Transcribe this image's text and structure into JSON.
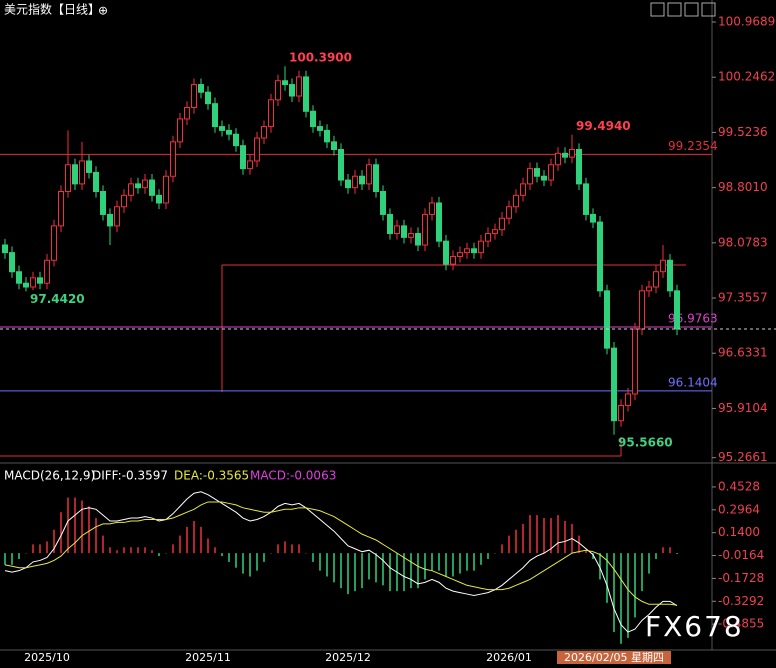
{
  "header": {
    "title": "美元指数【日线】",
    "icon": "⊕"
  },
  "watermark": "FX678",
  "chart_data": [
    {
      "type": "candlestick",
      "categories": [
        null,
        null,
        null,
        null,
        null,
        null,
        "2025/10",
        null,
        null,
        null,
        null,
        null,
        null,
        null,
        null,
        null,
        null,
        null,
        null,
        null,
        null,
        null,
        null,
        null,
        null,
        null,
        null,
        null,
        null,
        "2025/11",
        null,
        null,
        null,
        null,
        null,
        null,
        null,
        null,
        null,
        null,
        null,
        null,
        null,
        null,
        null,
        null,
        null,
        null,
        null,
        "2025/12",
        null,
        null,
        null,
        null,
        null,
        null,
        null,
        null,
        null,
        null,
        null,
        null,
        null,
        null,
        null,
        null,
        null,
        null,
        null,
        null,
        null,
        null,
        "2026/01",
        null,
        null,
        null,
        null,
        null,
        null,
        null,
        null,
        null,
        null,
        null,
        null,
        null,
        null,
        "2026/02/05 星期四",
        null,
        null,
        null,
        null,
        null,
        null,
        null,
        null,
        null
      ],
      "open": [
        98.05,
        97.95,
        97.7,
        97.55,
        97.5,
        97.62,
        97.55,
        97.85,
        98.3,
        98.75,
        99.1,
        98.85,
        99.15,
        99.0,
        98.75,
        98.45,
        98.3,
        98.55,
        98.7,
        98.85,
        98.8,
        98.9,
        98.7,
        98.6,
        98.95,
        99.4,
        99.7,
        99.85,
        100.15,
        100.05,
        99.9,
        99.6,
        99.55,
        99.5,
        99.35,
        99.05,
        99.15,
        99.45,
        99.6,
        99.95,
        100.2,
        100.15,
        100.0,
        100.25,
        99.8,
        99.6,
        99.55,
        99.4,
        99.3,
        98.9,
        98.8,
        98.95,
        98.85,
        99.1,
        98.75,
        98.45,
        98.2,
        98.3,
        98.15,
        98.2,
        98.05,
        98.45,
        98.6,
        98.1,
        97.8,
        97.9,
        97.95,
        98.0,
        97.95,
        98.1,
        98.2,
        98.25,
        98.4,
        98.55,
        98.7,
        98.85,
        99.05,
        98.95,
        98.9,
        99.1,
        99.25,
        99.2,
        99.3,
        98.85,
        98.45,
        98.35,
        97.45,
        96.7,
        95.75,
        95.95,
        96.1,
        96.95,
        97.45,
        97.5,
        97.7,
        97.85,
        97.45
      ],
      "high": [
        98.13,
        98.03,
        97.78,
        97.63,
        97.7,
        97.7,
        97.93,
        98.38,
        98.83,
        99.55,
        99.18,
        99.4,
        99.23,
        99.08,
        98.83,
        98.53,
        98.63,
        98.78,
        98.93,
        98.93,
        98.98,
        98.98,
        98.78,
        99.03,
        99.48,
        99.78,
        99.93,
        100.23,
        100.23,
        100.13,
        99.98,
        99.68,
        99.63,
        99.58,
        99.43,
        99.23,
        99.53,
        99.68,
        100.03,
        100.28,
        100.39,
        100.23,
        100.33,
        100.33,
        99.88,
        99.68,
        99.63,
        99.48,
        99.38,
        98.98,
        99.03,
        99.03,
        99.18,
        99.18,
        98.83,
        98.53,
        98.38,
        98.38,
        98.28,
        98.28,
        98.53,
        98.68,
        98.68,
        98.18,
        97.98,
        98.03,
        98.08,
        98.08,
        98.18,
        98.28,
        98.33,
        98.48,
        98.63,
        98.78,
        98.93,
        99.13,
        99.13,
        99.03,
        99.18,
        99.33,
        99.33,
        99.494,
        99.38,
        98.93,
        98.53,
        98.43,
        97.53,
        96.78,
        96.03,
        96.18,
        97.03,
        97.53,
        97.58,
        97.78,
        98.05,
        97.93,
        97.53
      ],
      "low": [
        97.87,
        97.62,
        97.47,
        97.442,
        97.46,
        97.47,
        97.47,
        97.77,
        98.22,
        98.67,
        98.77,
        98.77,
        98.92,
        98.67,
        98.37,
        98.05,
        98.22,
        98.47,
        98.62,
        98.72,
        98.72,
        98.62,
        98.52,
        98.52,
        98.87,
        99.32,
        99.62,
        99.77,
        99.97,
        99.82,
        99.52,
        99.47,
        99.42,
        99.27,
        98.97,
        98.97,
        99.07,
        99.37,
        99.52,
        99.87,
        100.07,
        99.92,
        99.92,
        99.72,
        99.52,
        99.47,
        99.32,
        99.22,
        98.82,
        98.72,
        98.72,
        98.77,
        98.77,
        98.67,
        98.37,
        98.12,
        98.12,
        98.07,
        98.07,
        97.97,
        97.97,
        98.37,
        98.02,
        97.72,
        97.72,
        97.82,
        97.87,
        97.87,
        97.87,
        98.02,
        98.12,
        98.17,
        98.32,
        98.47,
        98.62,
        98.77,
        98.87,
        98.82,
        98.82,
        99.02,
        99.12,
        99.12,
        98.77,
        98.37,
        98.27,
        97.37,
        96.62,
        95.566,
        95.67,
        95.87,
        96.02,
        96.87,
        97.37,
        97.42,
        97.62,
        97.37,
        96.87
      ],
      "close": [
        97.95,
        97.7,
        97.55,
        97.5,
        97.62,
        97.55,
        97.85,
        98.3,
        98.75,
        99.1,
        98.85,
        99.15,
        99.0,
        98.75,
        98.45,
        98.3,
        98.55,
        98.7,
        98.85,
        98.8,
        98.9,
        98.7,
        98.6,
        98.95,
        99.4,
        99.7,
        99.85,
        100.15,
        100.05,
        99.9,
        99.6,
        99.55,
        99.5,
        99.35,
        99.05,
        99.15,
        99.45,
        99.6,
        99.95,
        100.2,
        100.15,
        100.0,
        100.25,
        99.8,
        99.6,
        99.55,
        99.4,
        99.3,
        98.9,
        98.8,
        98.95,
        98.85,
        99.1,
        98.75,
        98.45,
        98.2,
        98.3,
        98.15,
        98.2,
        98.05,
        98.45,
        98.6,
        98.1,
        97.8,
        97.9,
        97.95,
        98.0,
        97.95,
        98.1,
        98.2,
        98.25,
        98.4,
        98.55,
        98.7,
        98.85,
        99.05,
        98.95,
        98.9,
        99.1,
        99.25,
        99.2,
        99.3,
        98.85,
        98.45,
        98.35,
        97.45,
        96.7,
        95.75,
        95.95,
        96.1,
        96.95,
        97.45,
        97.5,
        97.7,
        97.85,
        97.45,
        96.95
      ],
      "up_color": "#f0303c",
      "down_color": "#2fd27a",
      "ylim": [
        95.2093,
        101.0213
      ],
      "yticks": [
        100.9689,
        100.2462,
        99.5236,
        {
          "value": 98.801,
          "label": "98.8010"
        },
        98.0783,
        97.3557,
        96.6331,
        95.9104,
        95.2661
      ],
      "hlines": [
        {
          "value": 99.2354,
          "color": "#e0303a"
        },
        {
          "value": 96.9763,
          "color": "#e040d0"
        },
        {
          "value": 96.1404,
          "color": "#7070ff"
        }
      ],
      "annotations": [
        {
          "value": 100.39,
          "label": "100.3900"
        },
        {
          "value": 99.494,
          "label": "99.4940"
        },
        {
          "value": 97.442,
          "label": "97.4420"
        },
        {
          "value": 95.566,
          "label": "95.5660"
        }
      ]
    },
    {
      "type": "macd",
      "title": "MACD(26,12,9)",
      "diff_label": "DIFF:-0.3597",
      "dea_label": "DEA:-0.3565",
      "macd_label": "MACD:-0.0063",
      "series": [
        {
          "name": "DIFF",
          "color": "#ffffff",
          "values": [
            -0.12,
            -0.13,
            -0.12,
            -0.1,
            -0.06,
            -0.05,
            -0.03,
            0.03,
            0.12,
            0.22,
            0.26,
            0.3,
            0.31,
            0.3,
            0.26,
            0.22,
            0.22,
            0.23,
            0.24,
            0.24,
            0.25,
            0.24,
            0.22,
            0.23,
            0.27,
            0.32,
            0.37,
            0.41,
            0.42,
            0.4,
            0.37,
            0.34,
            0.31,
            0.28,
            0.24,
            0.22,
            0.23,
            0.25,
            0.28,
            0.32,
            0.34,
            0.33,
            0.34,
            0.31,
            0.27,
            0.23,
            0.19,
            0.15,
            0.1,
            0.05,
            0.03,
            0.01,
            0.02,
            -0.01,
            -0.05,
            -0.1,
            -0.13,
            -0.16,
            -0.18,
            -0.21,
            -0.2,
            -0.18,
            -0.2,
            -0.24,
            -0.26,
            -0.27,
            -0.28,
            -0.29,
            -0.28,
            -0.27,
            -0.25,
            -0.22,
            -0.18,
            -0.14,
            -0.1,
            -0.05,
            -0.02,
            0.0,
            0.03,
            0.07,
            0.08,
            0.1,
            0.07,
            0.03,
            -0.01,
            -0.1,
            -0.22,
            -0.38,
            -0.49,
            -0.54,
            -0.52,
            -0.46,
            -0.42,
            -0.37,
            -0.33,
            -0.33,
            -0.3597
          ]
        },
        {
          "name": "DEA",
          "color": "#e8e83c",
          "values": [
            -0.08,
            -0.09,
            -0.1,
            -0.1,
            -0.09,
            -0.08,
            -0.07,
            -0.05,
            -0.02,
            0.03,
            0.07,
            0.12,
            0.15,
            0.18,
            0.2,
            0.2,
            0.21,
            0.21,
            0.22,
            0.22,
            0.23,
            0.23,
            0.23,
            0.23,
            0.24,
            0.26,
            0.28,
            0.3,
            0.33,
            0.35,
            0.35,
            0.35,
            0.34,
            0.33,
            0.31,
            0.3,
            0.29,
            0.28,
            0.28,
            0.29,
            0.3,
            0.3,
            0.31,
            0.31,
            0.3,
            0.29,
            0.27,
            0.25,
            0.22,
            0.19,
            0.16,
            0.13,
            0.11,
            0.09,
            0.06,
            0.03,
            0.0,
            -0.03,
            -0.06,
            -0.09,
            -0.11,
            -0.12,
            -0.14,
            -0.16,
            -0.18,
            -0.2,
            -0.22,
            -0.23,
            -0.24,
            -0.25,
            -0.25,
            -0.25,
            -0.24,
            -0.22,
            -0.2,
            -0.18,
            -0.15,
            -0.12,
            -0.09,
            -0.06,
            -0.03,
            0.0,
            0.01,
            0.02,
            0.01,
            -0.01,
            -0.05,
            -0.11,
            -0.18,
            -0.25,
            -0.3,
            -0.33,
            -0.35,
            -0.35,
            -0.35,
            -0.35,
            -0.3565
          ]
        },
        {
          "name": "MACD",
          "color": "#e040e0",
          "values": [
            -0.08,
            -0.08,
            -0.04,
            0.0,
            0.06,
            0.06,
            0.08,
            0.16,
            0.28,
            0.38,
            0.38,
            0.36,
            0.32,
            0.24,
            0.12,
            0.04,
            0.02,
            0.04,
            0.04,
            0.04,
            0.04,
            0.02,
            -0.02,
            0.0,
            0.06,
            0.12,
            0.18,
            0.22,
            0.18,
            0.1,
            0.04,
            -0.02,
            -0.06,
            -0.1,
            -0.14,
            -0.16,
            -0.12,
            -0.06,
            0.0,
            0.06,
            0.08,
            0.06,
            0.06,
            0.0,
            -0.06,
            -0.12,
            -0.16,
            -0.2,
            -0.24,
            -0.28,
            -0.26,
            -0.24,
            -0.18,
            -0.2,
            -0.22,
            -0.26,
            -0.26,
            -0.26,
            -0.24,
            -0.24,
            -0.18,
            -0.12,
            -0.12,
            -0.16,
            -0.16,
            -0.14,
            -0.12,
            -0.12,
            -0.08,
            -0.04,
            0.0,
            0.06,
            0.12,
            0.16,
            0.2,
            0.26,
            0.26,
            0.24,
            0.24,
            0.26,
            0.22,
            0.2,
            0.12,
            0.02,
            -0.04,
            -0.18,
            -0.34,
            -0.54,
            -0.62,
            -0.58,
            -0.44,
            -0.26,
            -0.14,
            -0.04,
            0.04,
            0.04,
            -0.0063
          ]
        }
      ],
      "bar_up_color": "#f0303c",
      "bar_down_color": "#2fd27a",
      "ylim": [
        -0.649,
        0.514
      ],
      "yticks": [
        0.4528,
        0.2964,
        {
          "value": 0.14,
          "label": "0.1400"
        },
        -0.0164,
        -0.1728,
        -0.3292,
        -0.4855
      ]
    }
  ]
}
